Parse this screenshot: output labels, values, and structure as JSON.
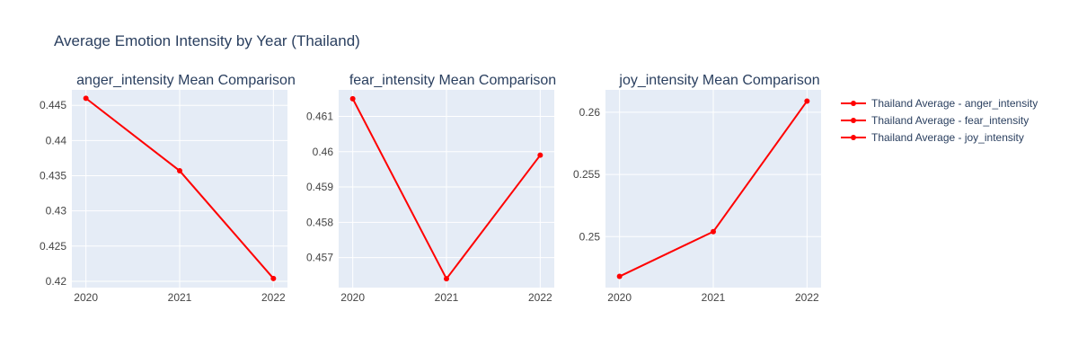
{
  "figure": {
    "title": "Average Emotion Intensity by Year (Thailand)"
  },
  "colors": {
    "line": "#ff0000",
    "plot_bg": "#e5ecf6",
    "grid": "#ffffff",
    "text": "#2a3f5f",
    "tick_text": "#444444"
  },
  "legend": {
    "placement": "top-right",
    "items": [
      "Thailand Average - anger_intensity",
      "Thailand Average - fear_intensity",
      "Thailand Average - joy_intensity"
    ]
  },
  "chart_data": [
    {
      "type": "line",
      "title": "anger_intensity Mean Comparison",
      "x": [
        2020,
        2021,
        2022
      ],
      "series": [
        {
          "name": "Thailand Average - anger_intensity",
          "values": [
            0.446,
            0.4357,
            0.4204
          ]
        }
      ],
      "xticks": [
        "2020",
        "2021",
        "2022"
      ],
      "yticks": [
        0.42,
        0.425,
        0.43,
        0.435,
        0.44,
        0.445
      ],
      "ytick_labels": [
        "0.42",
        "0.425",
        "0.43",
        "0.435",
        "0.44",
        "0.445"
      ],
      "xlim": [
        2019.85,
        2022.15
      ],
      "ylim": [
        0.4191,
        0.4472
      ],
      "grid": true
    },
    {
      "type": "line",
      "title": "fear_intensity Mean Comparison",
      "x": [
        2020,
        2021,
        2022
      ],
      "series": [
        {
          "name": "Thailand Average - fear_intensity",
          "values": [
            0.4615,
            0.4564,
            0.4599
          ]
        }
      ],
      "xticks": [
        "2020",
        "2021",
        "2022"
      ],
      "yticks": [
        0.457,
        0.458,
        0.459,
        0.46,
        0.461
      ],
      "ytick_labels": [
        "0.457",
        "0.458",
        "0.459",
        "0.46",
        "0.461"
      ],
      "xlim": [
        2019.85,
        2022.15
      ],
      "ylim": [
        0.45615,
        0.46175
      ],
      "grid": true
    },
    {
      "type": "line",
      "title": "joy_intensity Mean Comparison",
      "x": [
        2020,
        2021,
        2022
      ],
      "series": [
        {
          "name": "Thailand Average - joy_intensity",
          "values": [
            0.2468,
            0.2504,
            0.2609
          ]
        }
      ],
      "xticks": [
        "2020",
        "2021",
        "2022"
      ],
      "yticks": [
        0.25,
        0.255,
        0.26
      ],
      "ytick_labels": [
        "0.25",
        "0.255",
        "0.26"
      ],
      "xlim": [
        2019.85,
        2022.15
      ],
      "ylim": [
        0.2459,
        0.2618
      ],
      "grid": true
    }
  ]
}
